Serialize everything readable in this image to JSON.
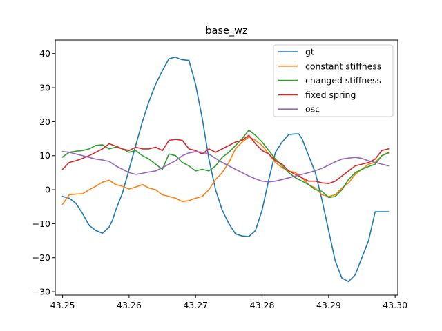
{
  "chart_data": {
    "type": "line",
    "title": "base_wz",
    "xlabel": "",
    "ylabel": "",
    "xlim": [
      43.2489,
      43.3004
    ],
    "ylim": [
      -31,
      44
    ],
    "x_ticks": [
      "43.25",
      "43.26",
      "43.27",
      "43.28",
      "43.29",
      "43.30"
    ],
    "y_ticks": [
      "−30",
      "−20",
      "−10",
      "0",
      "10",
      "20",
      "30",
      "40"
    ],
    "grid": false,
    "legend_position": "upper right",
    "series": [
      {
        "name": "gt",
        "color": "#1f77b4",
        "x": [
          43.25,
          43.251,
          43.252,
          43.253,
          43.254,
          43.255,
          43.256,
          43.257,
          43.2575,
          43.258,
          43.259,
          43.26,
          43.261,
          43.262,
          43.263,
          43.264,
          43.265,
          43.266,
          43.267,
          43.2675,
          43.268,
          43.269,
          43.27,
          43.271,
          43.272,
          43.273,
          43.274,
          43.275,
          43.276,
          43.277,
          43.278,
          43.279,
          43.28,
          43.281,
          43.282,
          43.283,
          43.284,
          43.285,
          43.2855,
          43.286,
          43.287,
          43.288,
          43.289,
          43.29,
          43.291,
          43.292,
          43.293,
          43.294,
          43.295,
          43.296,
          43.297,
          43.298,
          43.299
        ],
        "y": [
          -2,
          -2.5,
          -4,
          -7,
          -10.5,
          -12,
          -12.8,
          -11,
          -9,
          -6,
          -1,
          6,
          13,
          20,
          26,
          31,
          35,
          38.5,
          39,
          38.5,
          38.2,
          38,
          31,
          21,
          9,
          0,
          -6,
          -10,
          -13,
          -13.6,
          -13.8,
          -12,
          -6,
          3,
          11,
          14,
          16.2,
          16.4,
          16.4,
          15,
          10,
          5,
          -3,
          -12,
          -21,
          -26,
          -27,
          -25,
          -20,
          -15,
          -6.5,
          -6.5,
          -6.5
        ]
      },
      {
        "name": "constant stiffness",
        "color": "#ff7f0e",
        "x": [
          43.25,
          43.251,
          43.252,
          43.253,
          43.254,
          43.255,
          43.256,
          43.257,
          43.258,
          43.259,
          43.26,
          43.261,
          43.262,
          43.263,
          43.264,
          43.265,
          43.266,
          43.267,
          43.268,
          43.269,
          43.27,
          43.271,
          43.272,
          43.273,
          43.274,
          43.275,
          43.276,
          43.277,
          43.278,
          43.279,
          43.28,
          43.281,
          43.282,
          43.283,
          43.284,
          43.285,
          43.286,
          43.287,
          43.288,
          43.289,
          43.29,
          43.291,
          43.292,
          43.293,
          43.294,
          43.295,
          43.296,
          43.297,
          43.298,
          43.299
        ],
        "y": [
          -4.3,
          -1.5,
          -1.3,
          -1.2,
          0,
          1,
          2.2,
          2.8,
          1.5,
          1,
          0.2,
          0.8,
          1.5,
          0.5,
          0,
          -1.5,
          -2,
          -2.5,
          -3.5,
          -3.2,
          -2.5,
          -2,
          0,
          3,
          5,
          8,
          12,
          14,
          15.5,
          14.5,
          13,
          10.5,
          8,
          6.5,
          5.5,
          5,
          3.5,
          1.5,
          0.5,
          -1.5,
          -2,
          -1.5,
          0.5,
          2,
          4.5,
          6,
          7.5,
          8,
          10,
          11
        ]
      },
      {
        "name": "changed stiffness",
        "color": "#2ca02c",
        "x": [
          43.25,
          43.251,
          43.252,
          43.253,
          43.254,
          43.255,
          43.256,
          43.257,
          43.258,
          43.259,
          43.26,
          43.261,
          43.262,
          43.263,
          43.264,
          43.265,
          43.266,
          43.267,
          43.268,
          43.269,
          43.27,
          43.271,
          43.272,
          43.273,
          43.274,
          43.275,
          43.276,
          43.277,
          43.278,
          43.279,
          43.28,
          43.281,
          43.282,
          43.283,
          43.284,
          43.285,
          43.286,
          43.287,
          43.288,
          43.289,
          43.29,
          43.291,
          43.292,
          43.293,
          43.294,
          43.295,
          43.296,
          43.297,
          43.298,
          43.299
        ],
        "y": [
          9.6,
          11,
          11.3,
          11.5,
          12,
          13,
          13.2,
          12,
          12.5,
          12,
          11,
          11.5,
          10,
          9,
          7.5,
          6,
          10.5,
          10,
          8,
          7,
          5.5,
          6,
          5.5,
          7,
          9.5,
          11,
          13,
          15,
          17.5,
          16,
          14,
          11.5,
          9,
          7,
          5,
          3.5,
          2.5,
          1.5,
          0,
          -0.5,
          -2.3,
          -2,
          0,
          3,
          5,
          6,
          6.8,
          7.5,
          10,
          10.8
        ]
      },
      {
        "name": "fixed spring",
        "color": "#d62728",
        "x": [
          43.25,
          43.251,
          43.252,
          43.253,
          43.254,
          43.255,
          43.256,
          43.257,
          43.258,
          43.259,
          43.26,
          43.261,
          43.262,
          43.263,
          43.264,
          43.265,
          43.266,
          43.267,
          43.268,
          43.269,
          43.27,
          43.271,
          43.272,
          43.273,
          43.274,
          43.275,
          43.276,
          43.277,
          43.278,
          43.279,
          43.28,
          43.281,
          43.282,
          43.283,
          43.284,
          43.285,
          43.286,
          43.287,
          43.288,
          43.289,
          43.29,
          43.291,
          43.292,
          43.293,
          43.294,
          43.295,
          43.296,
          43.297,
          43.298,
          43.299
        ],
        "y": [
          6,
          8,
          8.5,
          9.2,
          10,
          11,
          12,
          13.5,
          12.8,
          12,
          11.5,
          12.5,
          12,
          12,
          12.5,
          11.5,
          14.5,
          14.8,
          14.5,
          12,
          11.5,
          10.5,
          12,
          11,
          12,
          13,
          14,
          14.5,
          16,
          13.5,
          11.5,
          10.5,
          8.5,
          7.5,
          5.5,
          4.5,
          3.5,
          2.5,
          2.5,
          2,
          1.8,
          2.5,
          4,
          5.5,
          7,
          7.5,
          8,
          9,
          11.5,
          12
        ]
      },
      {
        "name": "osc",
        "color": "#9467bd",
        "x": [
          43.25,
          43.251,
          43.252,
          43.253,
          43.254,
          43.255,
          43.256,
          43.257,
          43.258,
          43.259,
          43.26,
          43.261,
          43.262,
          43.263,
          43.264,
          43.265,
          43.266,
          43.267,
          43.268,
          43.269,
          43.27,
          43.271,
          43.272,
          43.273,
          43.274,
          43.275,
          43.276,
          43.277,
          43.278,
          43.279,
          43.28,
          43.281,
          43.282,
          43.283,
          43.284,
          43.285,
          43.286,
          43.287,
          43.288,
          43.289,
          43.29,
          43.291,
          43.292,
          43.293,
          43.294,
          43.295,
          43.296,
          43.297,
          43.298,
          43.299
        ],
        "y": [
          11.2,
          11,
          10.5,
          10,
          9.5,
          9,
          8.7,
          8.3,
          7,
          6,
          5,
          4.5,
          4.8,
          5.2,
          5.5,
          6.5,
          7.5,
          8.5,
          10,
          10.8,
          11.2,
          11,
          10.5,
          9.2,
          8,
          7,
          6,
          5,
          4,
          3.2,
          2.5,
          2.3,
          2.5,
          3,
          3.5,
          4,
          4.5,
          5,
          5.6,
          6.3,
          7.2,
          8.2,
          9,
          9.3,
          9.5,
          9.2,
          8.5,
          8,
          7.5,
          7
        ]
      }
    ]
  }
}
